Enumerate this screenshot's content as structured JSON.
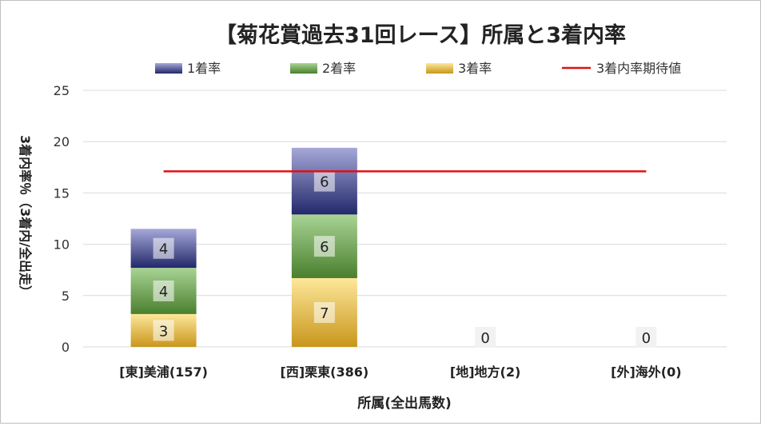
{
  "chart_data": {
    "type": "bar",
    "stacked": true,
    "title": "【菊花賞過去31回レース】所属と3着内率",
    "xlabel": "所属(全出馬数)",
    "ylabel": "3着内率％（3着内/全出走）",
    "ylim": [
      0,
      25
    ],
    "yticks": [
      0,
      5,
      10,
      15,
      20,
      25
    ],
    "grid": true,
    "legend_position": "top",
    "categories": [
      "[東]美浦(157)",
      "[西]栗東(386)",
      "[地]地方(2)",
      "[外]海外(0)"
    ],
    "series": [
      {
        "name": "3着率",
        "values": [
          3.2,
          6.7,
          0,
          0
        ],
        "labels": [
          "3",
          "7",
          "",
          ""
        ],
        "color": "#e8b83a"
      },
      {
        "name": "2着率",
        "values": [
          4.5,
          6.2,
          0,
          0
        ],
        "labels": [
          "4",
          "6",
          "",
          ""
        ],
        "color": "#6fa84f"
      },
      {
        "name": "1着率",
        "values": [
          3.8,
          6.5,
          0,
          0
        ],
        "labels": [
          "4",
          "6",
          "",
          ""
        ],
        "color": "#5a62a8"
      }
    ],
    "reference_line": {
      "name": "3着内率期待値",
      "value": 17.1,
      "color": "#e01010"
    },
    "zero_labels": [
      "",
      "",
      "0",
      "0"
    ]
  }
}
